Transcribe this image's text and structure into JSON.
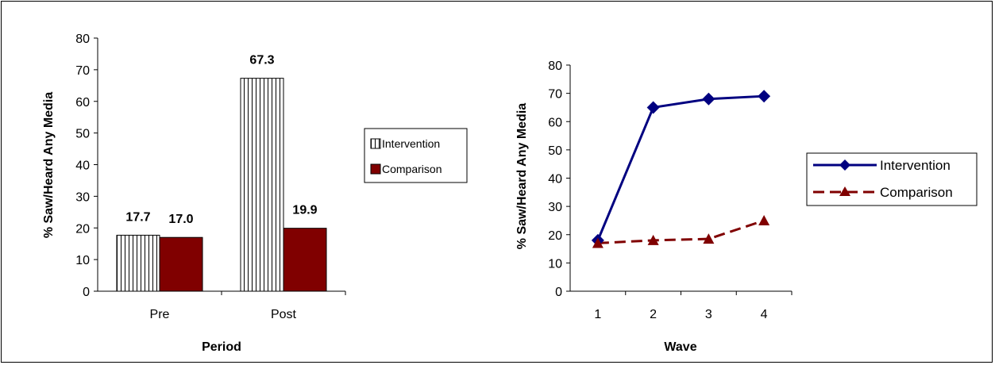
{
  "chart_data": [
    {
      "type": "bar",
      "categories": [
        "Pre",
        "Post"
      ],
      "series": [
        {
          "name": "Intervention",
          "values": [
            17.7,
            67.3
          ],
          "color": "#ffffff",
          "pattern": "vertical-stripes"
        },
        {
          "name": "Comparison",
          "values": [
            17.0,
            19.9
          ],
          "color": "#800000"
        }
      ],
      "data_labels": [
        "17.7",
        "67.3",
        "17.0",
        "19.9"
      ],
      "xlabel": "Period",
      "ylabel": "% Saw/Heard Any Media",
      "ylim": [
        0,
        80
      ],
      "yticks": [
        "0",
        "10",
        "20",
        "30",
        "40",
        "50",
        "60",
        "70",
        "80"
      ],
      "legend": "right",
      "grid": false
    },
    {
      "type": "line",
      "x": [
        1,
        2,
        3,
        4
      ],
      "xticks": [
        "1",
        "2",
        "3",
        "4"
      ],
      "series": [
        {
          "name": "Intervention",
          "values": [
            18,
            65,
            68,
            69
          ],
          "color": "#000080",
          "marker": "diamond",
          "line": "solid"
        },
        {
          "name": "Comparison",
          "values": [
            17,
            18,
            18.5,
            25
          ],
          "color": "#800000",
          "marker": "triangle",
          "line": "dashed"
        }
      ],
      "xlabel": "Wave",
      "ylabel": "% Saw/Heard Any Media",
      "ylim": [
        0,
        80
      ],
      "yticks": [
        "0",
        "10",
        "20",
        "30",
        "40",
        "50",
        "60",
        "70",
        "80"
      ],
      "legend": "right",
      "grid": false
    }
  ]
}
